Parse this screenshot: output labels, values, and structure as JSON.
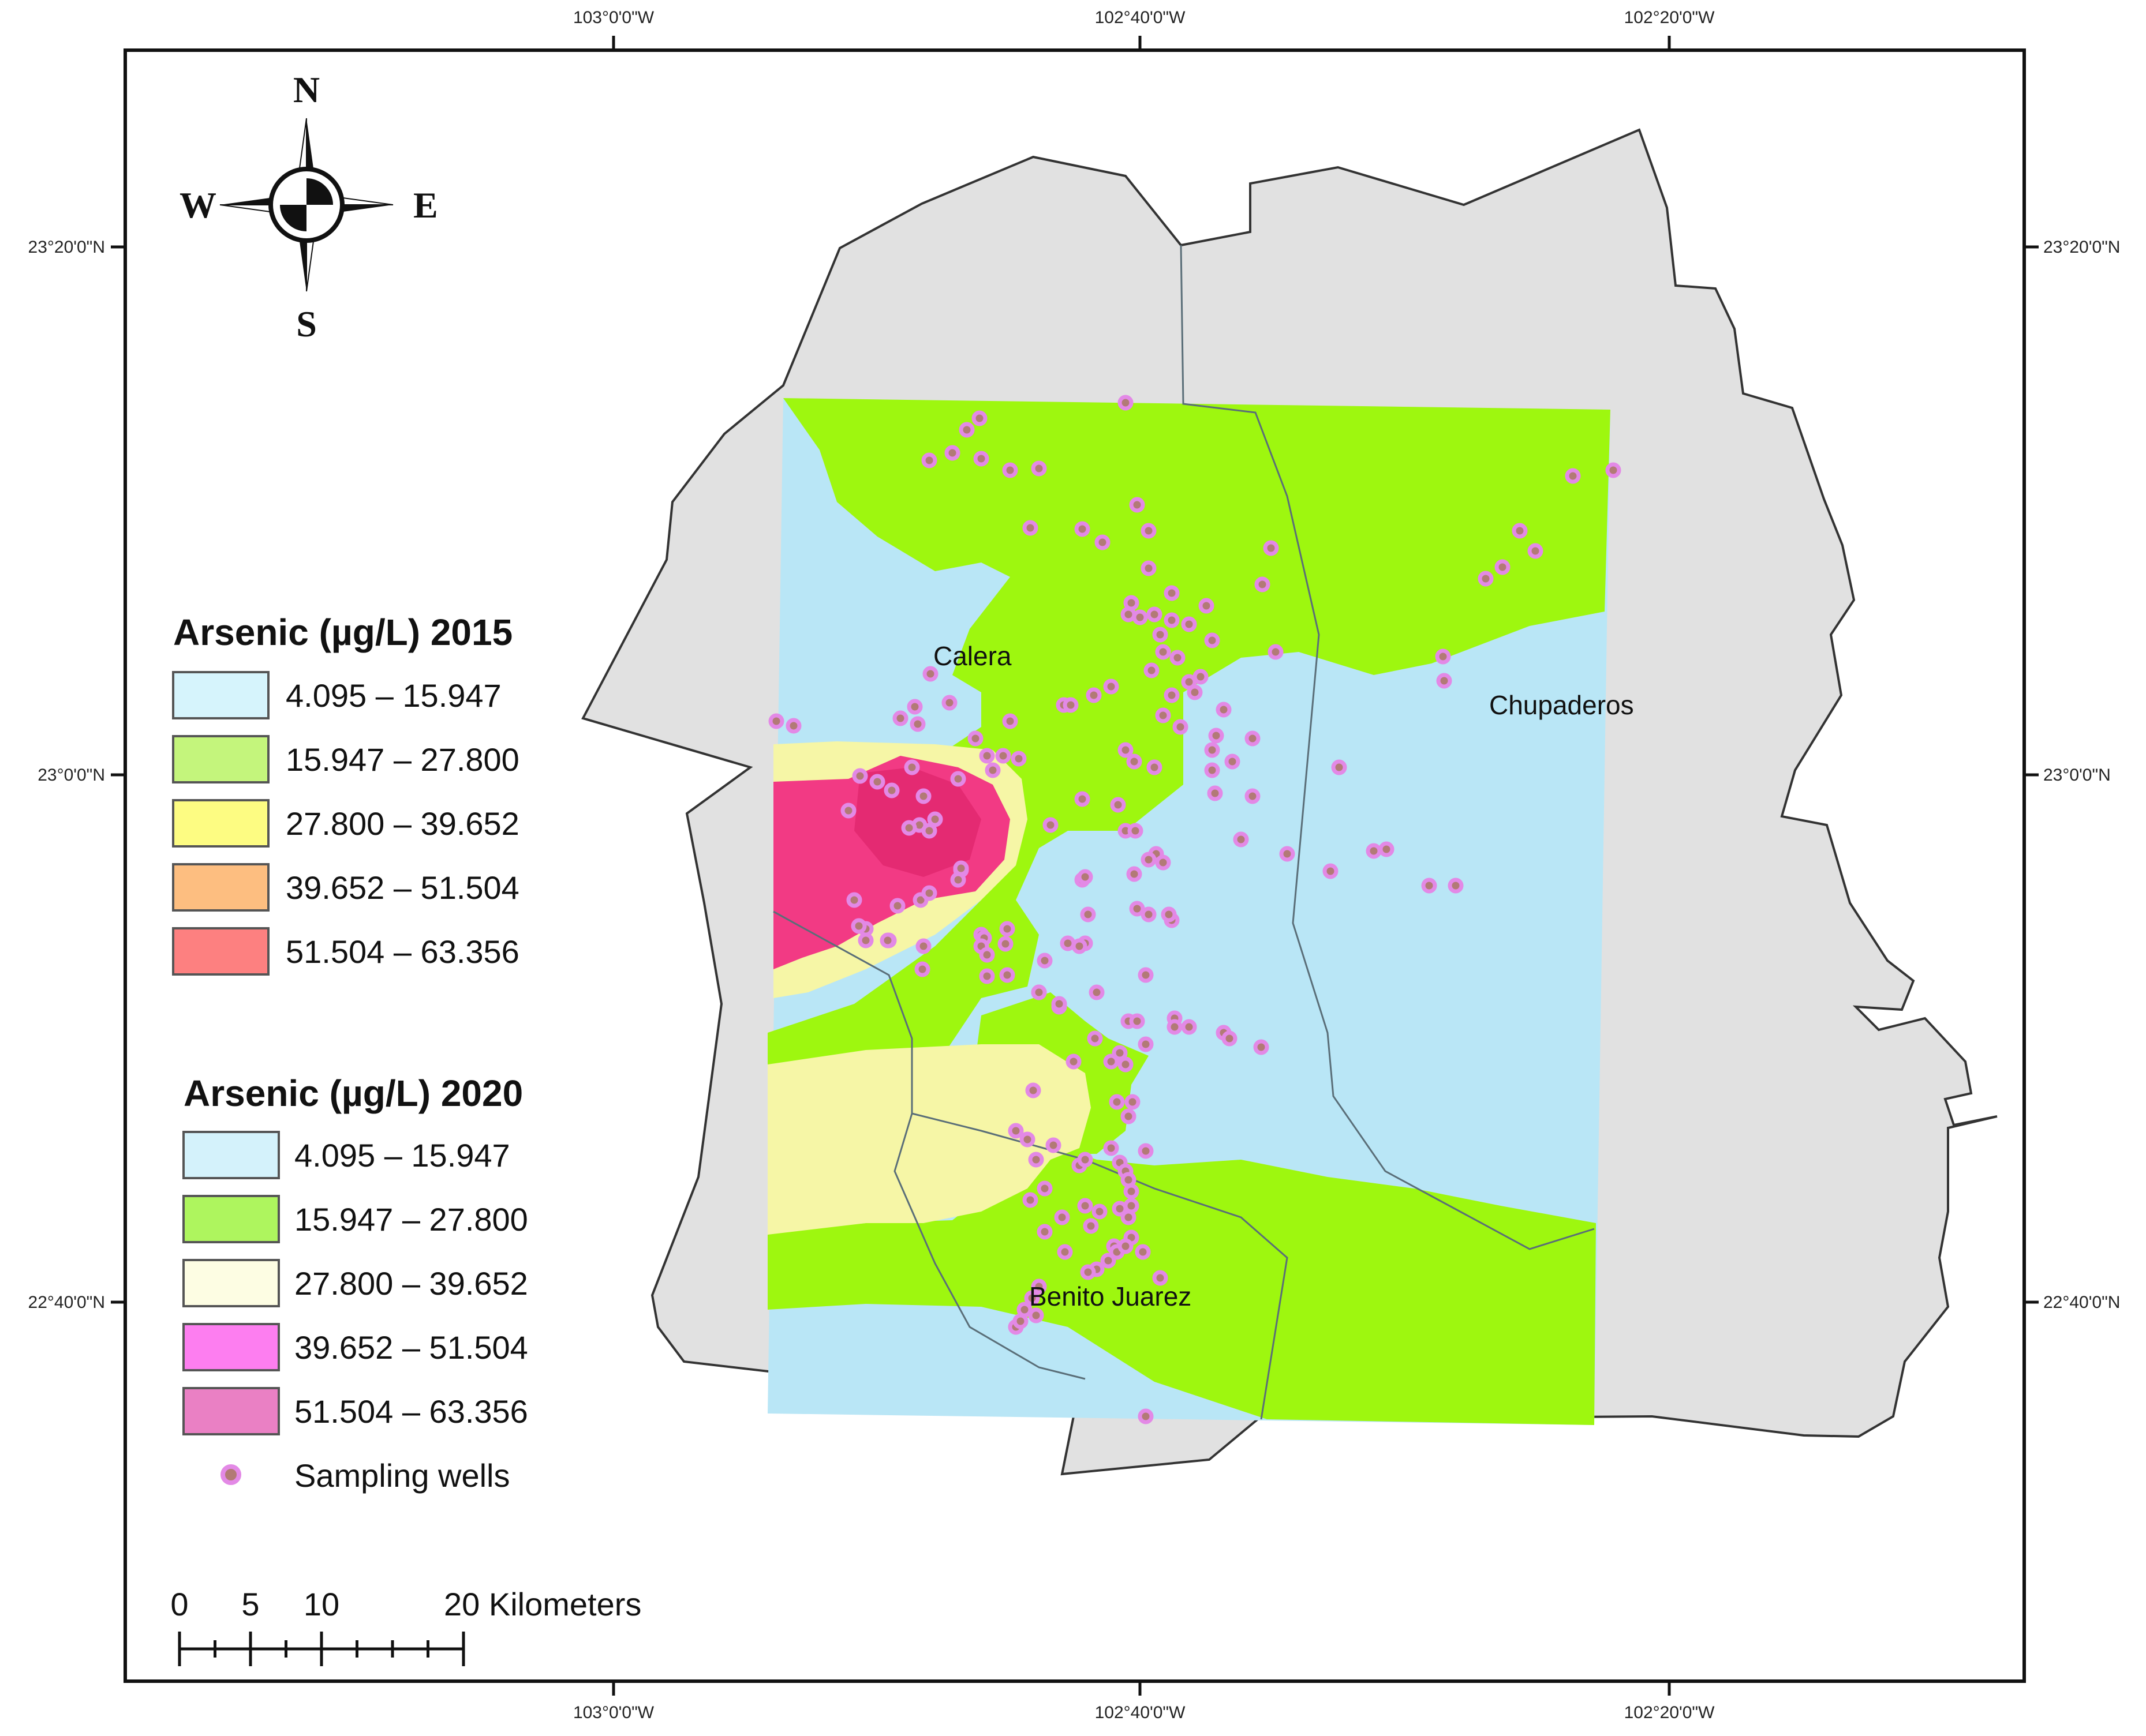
{
  "graticule": {
    "top_longitudes": [
      "103°0'0\"W",
      "102°40'0\"W",
      "102°20'0\"W"
    ],
    "bottom_longitudes": [
      "103°0'0\"W",
      "102°40'0\"W",
      "102°20'0\"W"
    ],
    "left_latitudes": [
      "23°20'0\"N",
      "23°0'0\"N",
      "22°40'0\"N"
    ],
    "right_latitudes": [
      "23°20'0\"N",
      "23°0'0\"N",
      "22°40'0\"N"
    ]
  },
  "compass": {
    "north": "N",
    "south": "S",
    "east": "E",
    "west": "W"
  },
  "places": {
    "calera": "Calera",
    "chupaderos": "Chupaderos",
    "benito_juarez": "Benito Juarez"
  },
  "legend_2015": {
    "title": "Arsenic (µg/L) 2015",
    "items": [
      {
        "label": "4.095 – 15.947",
        "color": "#d6f4fc"
      },
      {
        "label": "15.947 – 27.800",
        "color": "#c4f57c"
      },
      {
        "label": "27.800 – 39.652",
        "color": "#fdfc82"
      },
      {
        "label": "39.652 – 51.504",
        "color": "#fdbe80"
      },
      {
        "label": "51.504 – 63.356",
        "color": "#fd8080"
      }
    ]
  },
  "legend_2020": {
    "title": "Arsenic (µg/L) 2020",
    "items": [
      {
        "label": "4.095 – 15.947",
        "color": "#d4f2fb"
      },
      {
        "label": "15.947 – 27.800",
        "color": "#aef55e"
      },
      {
        "label": "27.800 – 39.652",
        "color": "#fdfde3"
      },
      {
        "label": "39.652 – 51.504",
        "color": "#fd7ef0"
      },
      {
        "label": "51.504 – 63.356",
        "color": "#ea80c4"
      }
    ],
    "wells_label": "Sampling wells"
  },
  "scale_bar": {
    "labels": [
      "0",
      "5",
      "10",
      "20 Kilometers"
    ]
  },
  "colors": {
    "municipality_fill": "#e1e1e1",
    "low_zone": "#b9e6f6",
    "mid_zone": "#9ef70f",
    "high_zone": "#f6f6a6",
    "very_high_zone": "#f23a84",
    "well_fill": "#b27a76",
    "well_ring": "#e389e6"
  }
}
